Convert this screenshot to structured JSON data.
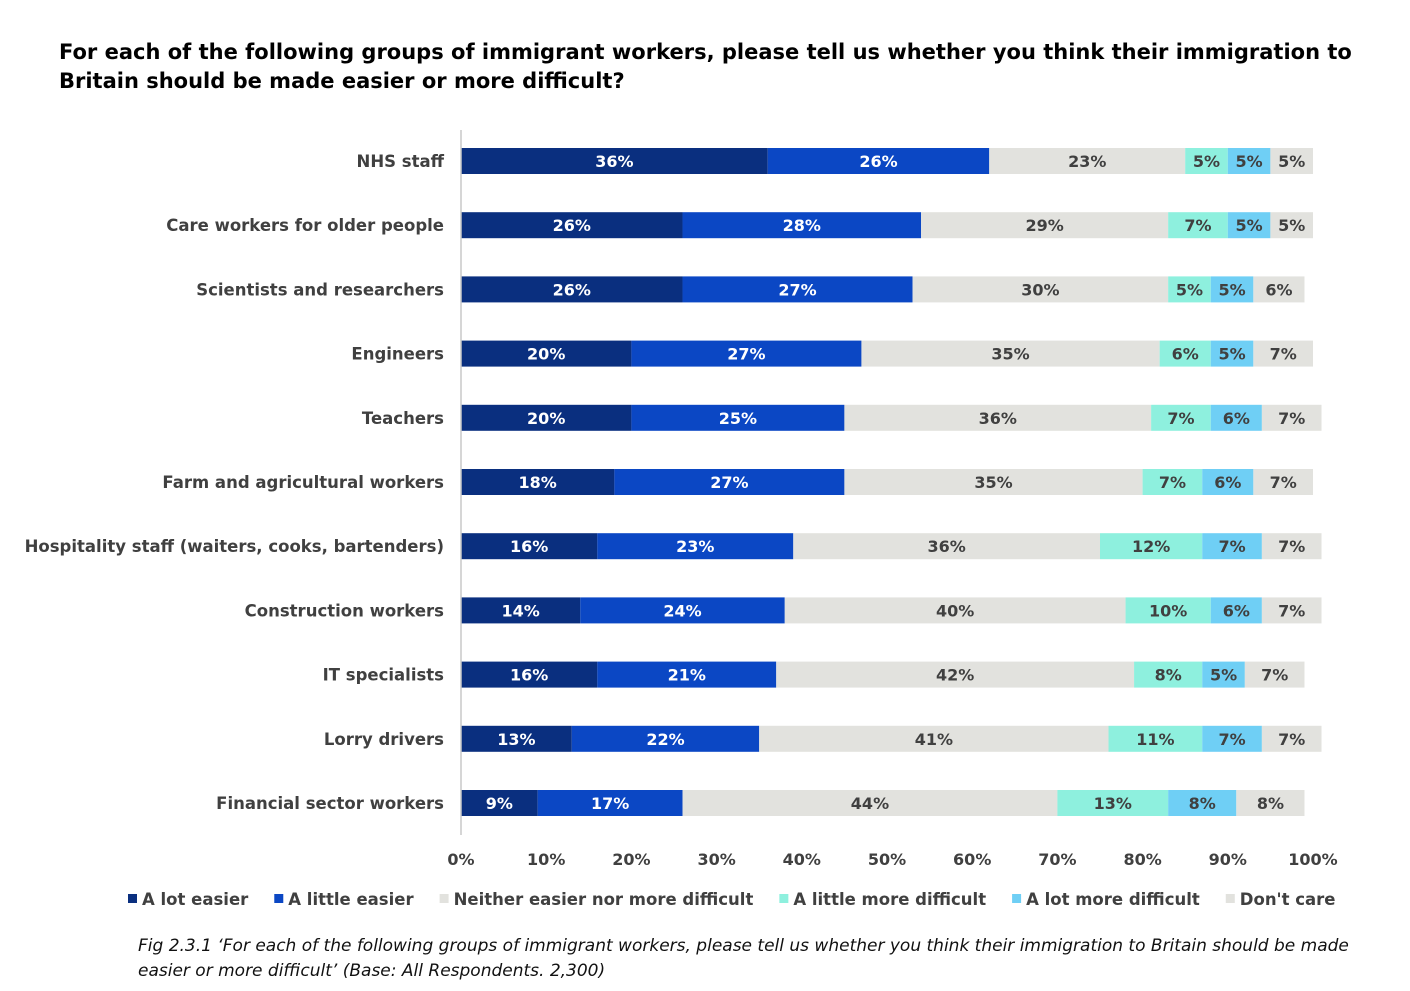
{
  "chart_data": {
    "type": "bar",
    "orientation": "horizontal",
    "stacked": "percent",
    "title": "For each of the following groups of immigrant workers, please tell us whether you think their immigration to Britain should be made easier or more difficult?",
    "categories": [
      "NHS staff",
      "Care workers for older people",
      "Scientists and researchers",
      "Engineers",
      "Teachers",
      "Farm and agricultural workers",
      "Hospitality staff (waiters, cooks, bartenders)",
      "Construction workers",
      "IT specialists",
      "Lorry drivers",
      "Financial sector workers"
    ],
    "series": [
      {
        "name": "A lot easier",
        "color": "#0a2f7f",
        "label_color": "#ffffff",
        "values": [
          36,
          26,
          26,
          20,
          20,
          18,
          16,
          14,
          16,
          13,
          9
        ]
      },
      {
        "name": "A little easier",
        "color": "#0b47c4",
        "label_color": "#ffffff",
        "values": [
          26,
          28,
          27,
          27,
          25,
          27,
          23,
          24,
          21,
          22,
          17
        ]
      },
      {
        "name": "Neither easier nor more difficult",
        "color": "#e2e2de",
        "label_color": "#404040",
        "values": [
          23,
          29,
          30,
          35,
          36,
          35,
          36,
          40,
          42,
          41,
          44
        ]
      },
      {
        "name": "A little more difficult",
        "color": "#8ef0de",
        "label_color": "#404040",
        "values": [
          5,
          7,
          5,
          6,
          7,
          7,
          12,
          10,
          8,
          11,
          13
        ]
      },
      {
        "name": "A lot more difficult",
        "color": "#6fcff5",
        "label_color": "#404040",
        "values": [
          5,
          5,
          5,
          5,
          6,
          6,
          7,
          6,
          5,
          7,
          8
        ]
      },
      {
        "name": "Don't care",
        "color": "#e2e2de",
        "label_color": "#404040",
        "values": [
          5,
          5,
          6,
          7,
          7,
          7,
          7,
          7,
          7,
          7,
          8
        ]
      }
    ],
    "value_suffix": "%",
    "x_ticks": [
      "0%",
      "10%",
      "20%",
      "30%",
      "40%",
      "50%",
      "60%",
      "70%",
      "80%",
      "90%",
      "100%"
    ],
    "xlim": [
      0,
      100
    ],
    "grid": false,
    "legend_position": "bottom",
    "caption": {
      "label": "Fig 2.3.1",
      "text": " ‘For each of the following groups of immigrant workers, please tell us whether you think their immigration to Britain should be made easier or more difficult’ (Base: All Respondents. 2,300)"
    }
  }
}
